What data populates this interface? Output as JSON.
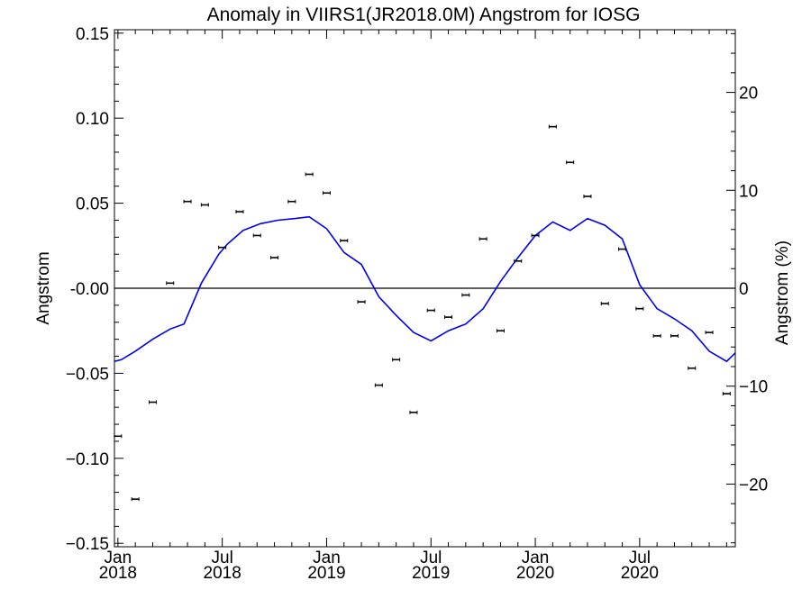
{
  "chart_data": {
    "type": "line",
    "title": "Anomaly in VIIRS1(JR2018.0M) Angstrom for IOSG",
    "ylabel": "Angstrom",
    "y2label": "Angstrom (%)",
    "xlabel": "",
    "ylim": [
      -0.152,
      0.152
    ],
    "y2lim": [
      -26.4,
      26.4
    ],
    "xlim": [
      -0.2,
      35.5
    ],
    "grid": false,
    "yticks": [
      {
        "v": 0.15,
        "label": "0.15"
      },
      {
        "v": 0.1,
        "label": "0.10"
      },
      {
        "v": 0.05,
        "label": "0.05"
      },
      {
        "v": 0.0,
        "label": "-0.00"
      },
      {
        "v": -0.05,
        "label": "−0.05"
      },
      {
        "v": -0.1,
        "label": "−0.10"
      },
      {
        "v": -0.15,
        "label": "−0.15"
      }
    ],
    "y2ticks": [
      {
        "v": 20,
        "label": "20"
      },
      {
        "v": 10,
        "label": "10"
      },
      {
        "v": 0,
        "label": "0"
      },
      {
        "v": -10,
        "label": "−10"
      },
      {
        "v": -20,
        "label": "−20"
      }
    ],
    "xticks": [
      {
        "m": 0,
        "month": "Jan",
        "year": "2018"
      },
      {
        "m": 6,
        "month": "Jul",
        "year": "2018"
      },
      {
        "m": 12,
        "month": "Jan",
        "year": "2019"
      },
      {
        "m": 18,
        "month": "Jul",
        "year": "2019"
      },
      {
        "m": 24,
        "month": "Jan",
        "year": "2020"
      },
      {
        "m": 30,
        "month": "Jul",
        "year": "2020"
      }
    ],
    "series": [
      {
        "kind": "points",
        "color": "#000000",
        "x": [
          "2018-01",
          "2018-02",
          "2018-03",
          "2018-04",
          "2018-05",
          "2018-06",
          "2018-07",
          "2018-08",
          "2018-09",
          "2018-10",
          "2018-11",
          "2018-12",
          "2019-01",
          "2019-02",
          "2019-03",
          "2019-04",
          "2019-05",
          "2019-06",
          "2019-07",
          "2019-08",
          "2019-09",
          "2019-10",
          "2019-11",
          "2019-12",
          "2020-01",
          "2020-02",
          "2020-03",
          "2020-04",
          "2020-05",
          "2020-06",
          "2020-07",
          "2020-08",
          "2020-09",
          "2020-10",
          "2020-11",
          "2020-12"
        ],
        "values": [
          -0.087,
          -0.124,
          -0.067,
          0.003,
          0.051,
          0.049,
          0.024,
          0.045,
          0.031,
          0.018,
          0.051,
          0.067,
          0.056,
          0.028,
          -0.008,
          -0.057,
          -0.042,
          -0.073,
          -0.013,
          -0.017,
          -0.004,
          0.029,
          -0.025,
          0.016,
          0.031,
          0.095,
          0.074,
          0.054,
          -0.009,
          0.023,
          -0.012,
          -0.028,
          -0.028,
          -0.047,
          -0.026,
          -0.062
        ]
      },
      {
        "kind": "line",
        "color": "#0000ee",
        "x": [
          -0.2,
          0.2,
          1,
          2,
          3,
          3.8,
          4.8,
          5.8,
          6.3,
          7.2,
          8.2,
          9.2,
          10.2,
          11,
          12,
          13,
          14,
          15,
          16,
          17,
          18,
          19,
          20,
          21,
          22,
          23,
          24,
          25,
          26,
          27,
          28,
          29,
          30,
          31,
          32,
          33,
          34,
          35,
          35.5
        ],
        "values": [
          -0.043,
          -0.042,
          -0.037,
          -0.03,
          -0.024,
          -0.021,
          0.003,
          0.02,
          0.026,
          0.034,
          0.038,
          0.04,
          0.041,
          0.042,
          0.035,
          0.021,
          0.014,
          -0.005,
          -0.016,
          -0.026,
          -0.031,
          -0.025,
          -0.021,
          -0.012,
          0.004,
          0.018,
          0.031,
          0.039,
          0.034,
          0.041,
          0.037,
          0.029,
          0.002,
          -0.012,
          -0.018,
          -0.025,
          -0.037,
          -0.043,
          -0.038
        ]
      }
    ]
  }
}
